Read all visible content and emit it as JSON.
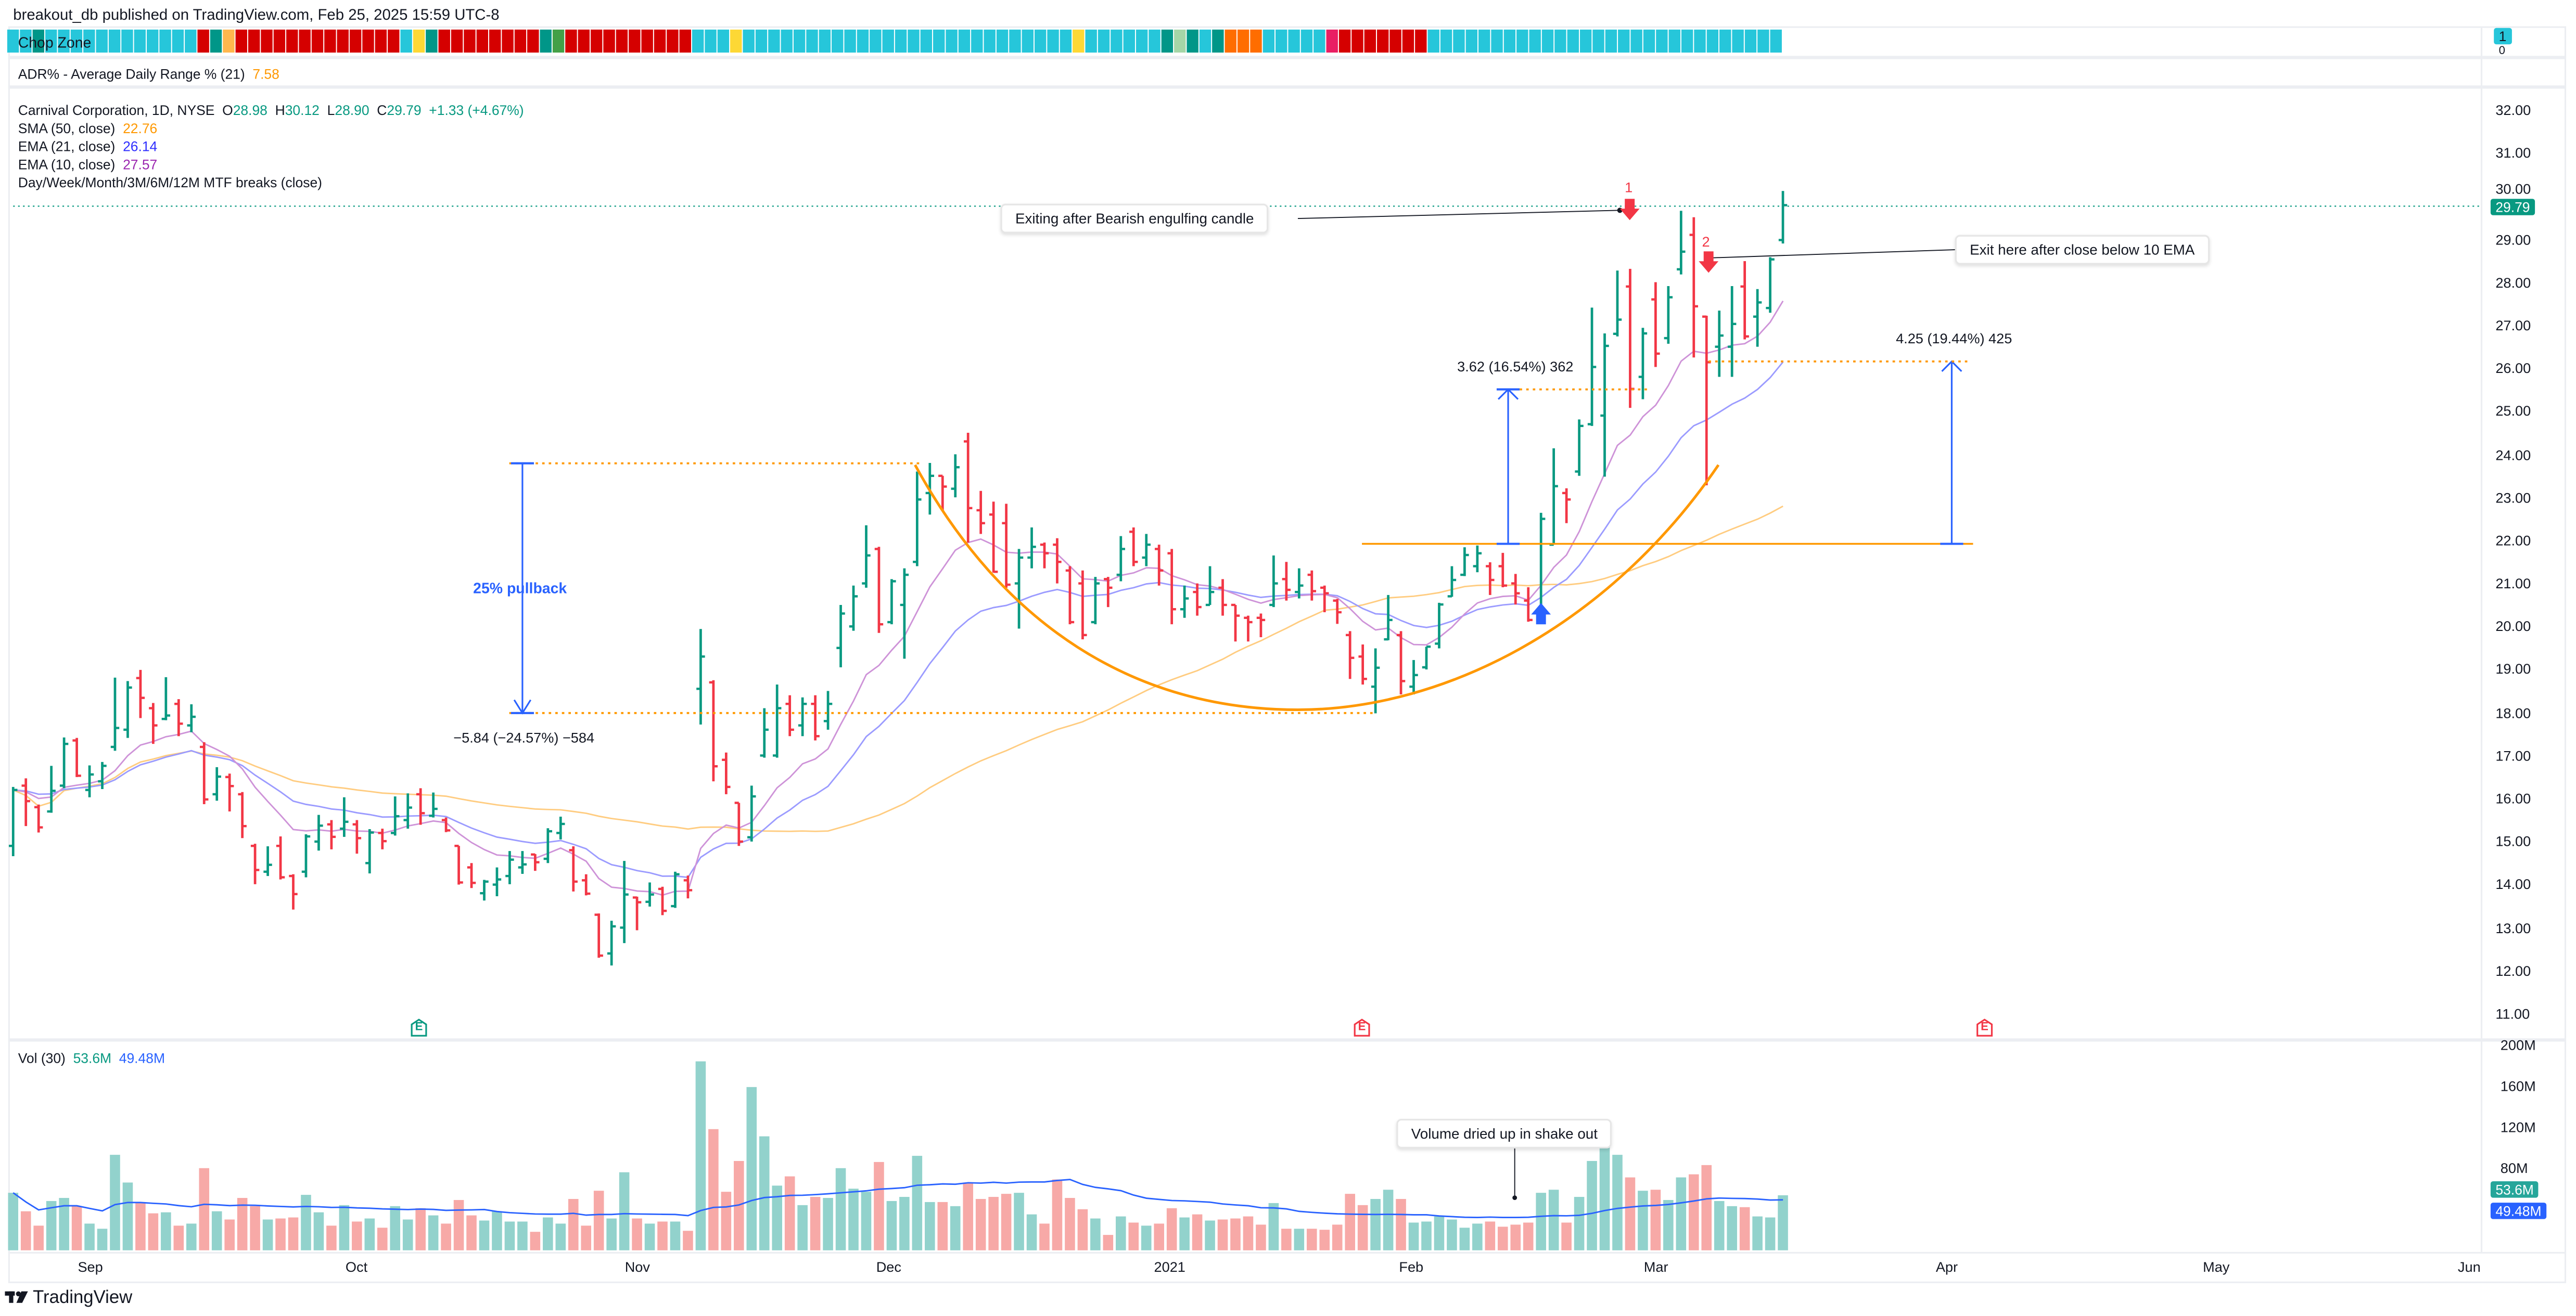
{
  "header": {
    "published": "breakout_db published on TradingView.com, Feb 25, 2025 15:59 UTC-8"
  },
  "chop_zone": {
    "title": "Chop Zone",
    "axis_top": "1",
    "axis_bottom": "0",
    "colors": {
      "C": "#26c6da",
      "T": "#009688",
      "O": "#ffb74d",
      "R": "#d50000",
      "Y": "#fdd835",
      "G": "#43a047",
      "L": "#a5d6a7",
      "N": "#ff6d00",
      "P": "#e91e63"
    },
    "cells": "CCTCCCCCCCCCCCCRTORRRRRRRRRRRRRCYTRRRRRRRRTGRRRRRRRRRRCCCYCCCCCCCCCCCCCCCCCCCCCCCCCCYCCCCCCTLTCTNNNCCCCCPRRRRRRRCCCCCCCCCCCCCCCCCCCCCCCCCCCC"
  },
  "adr": {
    "label": "ADR% - Average Daily Range % (21)",
    "value": "7.58"
  },
  "legend": {
    "symbol": "Carnival Corporation, 1D, NYSE",
    "o_label": "O",
    "o": "28.98",
    "h_label": "H",
    "h": "30.12",
    "l_label": "L",
    "l": "28.90",
    "c_label": "C",
    "c": "29.79",
    "change": "+1.33 (+4.67%)",
    "sma50_label": "SMA (50, close)",
    "sma50": "22.76",
    "ema21_label": "EMA (21, close)",
    "ema21": "26.14",
    "ema10_label": "EMA (10, close)",
    "ema10": "27.57",
    "mtf_label": "Day/Week/Month/3M/6M/12M MTF breaks (close)"
  },
  "colors": {
    "up": "#089981",
    "down": "#f23645",
    "vol_up": "#92d2cc",
    "vol_down": "#f7a9a7",
    "sma50": "#ffcc80",
    "ema21": "#9b9bff",
    "ema10": "#ce93d8",
    "vol_ma": "#2962ff",
    "drawing_orange": "#ff9800",
    "measure_blue": "#2962ff"
  },
  "price_axis": {
    "labels": [
      "32.00",
      "31.00",
      "30.00",
      "29.00",
      "28.00",
      "27.00",
      "26.00",
      "25.00",
      "24.00",
      "23.00",
      "22.00",
      "21.00",
      "20.00",
      "19.00",
      "18.00",
      "17.00",
      "16.00",
      "15.00",
      "14.00",
      "13.00",
      "12.00",
      "11.00"
    ],
    "last_price": "29.79"
  },
  "volume_axis": {
    "labels": [
      {
        "text": "200M",
        "v": 200
      },
      {
        "text": "160M",
        "v": 160
      },
      {
        "text": "120M",
        "v": 120
      },
      {
        "text": "80M",
        "v": 80
      }
    ],
    "vol_badge": "53.6M",
    "ma_badge": "49.48M"
  },
  "volume_legend": {
    "label": "Vol (30)",
    "vol": "53.6M",
    "ma": "49.48M"
  },
  "time_axis": {
    "labels": [
      "Sep",
      "Oct",
      "Nov",
      "Dec",
      "2021",
      "Feb",
      "Mar",
      "Apr",
      "May",
      "Jun"
    ]
  },
  "annotations": {
    "exit1_callout": "Exiting after Bearish engulfing candle",
    "exit2_callout": "Exit here after close below 10 EMA",
    "exit1_num": "1",
    "exit2_num": "2",
    "pullback_label": "25% pullback",
    "pullback_measure": "−5.84 (−24.57%) −584",
    "measure1": "3.62 (16.54%) 362",
    "measure2": "4.25 (19.44%) 425",
    "volume_callout": "Volume dried up in shake out",
    "earnings": [
      "E",
      "E",
      "E"
    ]
  },
  "footer": {
    "brand": "TradingView"
  },
  "chart_data": {
    "type": "ohlc",
    "title": "Carnival Corporation, 1D, NYSE",
    "x_range": [
      "2020-08-24",
      "2021-03-19"
    ],
    "ylim": [
      10.5,
      32.5
    ],
    "volume_ylim": [
      0,
      200
    ],
    "volume_unit": "M",
    "grid": false,
    "bar_fields": [
      "open",
      "high",
      "low",
      "close"
    ],
    "bars": [
      [
        14.9,
        16.27,
        14.66,
        16.2
      ],
      [
        16.3,
        16.47,
        15.36,
        15.94
      ],
      [
        15.8,
        15.86,
        15.21,
        15.33
      ],
      [
        15.7,
        16.76,
        15.67,
        16.18
      ],
      [
        16.3,
        17.42,
        16.24,
        17.27
      ],
      [
        17.35,
        17.41,
        16.5,
        16.53
      ],
      [
        16.2,
        16.77,
        16.03,
        16.56
      ],
      [
        16.4,
        16.85,
        16.22,
        16.76
      ],
      [
        17.2,
        18.81,
        17.11,
        17.64
      ],
      [
        17.6,
        18.73,
        17.41,
        18.58
      ],
      [
        18.8,
        18.99,
        17.87,
        18.34
      ],
      [
        18.1,
        18.22,
        17.27,
        17.7
      ],
      [
        17.85,
        18.82,
        17.82,
        17.93
      ],
      [
        18.2,
        18.31,
        17.45,
        17.74
      ],
      [
        17.7,
        18.19,
        17.54,
        17.9
      ],
      [
        17.2,
        17.31,
        15.87,
        15.98
      ],
      [
        16.1,
        16.73,
        15.95,
        16.51
      ],
      [
        16.5,
        16.58,
        15.7,
        16.29
      ],
      [
        16.1,
        16.15,
        15.08,
        15.36
      ],
      [
        14.9,
        14.95,
        14.01,
        14.34
      ],
      [
        14.3,
        14.89,
        14.2,
        14.46
      ],
      [
        14.9,
        15.12,
        14.12,
        14.17
      ],
      [
        14.2,
        14.24,
        13.42,
        13.78
      ],
      [
        14.3,
        15.17,
        14.17,
        15.12
      ],
      [
        15.0,
        15.62,
        14.79,
        15.37
      ],
      [
        15.4,
        15.5,
        14.82,
        15.11
      ],
      [
        15.3,
        16.03,
        15.11,
        15.46
      ],
      [
        15.4,
        15.5,
        14.72,
        15.08
      ],
      [
        14.5,
        15.29,
        14.26,
        15.21
      ],
      [
        15.2,
        15.3,
        14.82,
        15.01
      ],
      [
        15.2,
        16.05,
        15.14,
        15.59
      ],
      [
        15.5,
        16.12,
        15.3,
        15.79
      ],
      [
        16.1,
        16.24,
        15.39,
        15.66
      ],
      [
        15.6,
        16.14,
        15.56,
        15.76
      ],
      [
        15.5,
        15.56,
        15.22,
        15.26
      ],
      [
        14.9,
        14.9,
        14.0,
        14.05
      ],
      [
        14.4,
        14.5,
        13.92,
        14.04
      ],
      [
        13.8,
        14.11,
        13.63,
        14.07
      ],
      [
        14.0,
        14.4,
        13.73,
        14.12
      ],
      [
        14.2,
        14.78,
        14.01,
        14.58
      ],
      [
        14.4,
        14.78,
        14.25,
        14.47
      ],
      [
        14.7,
        14.71,
        14.32,
        14.52
      ],
      [
        14.6,
        15.31,
        14.5,
        15.24
      ],
      [
        15.2,
        15.58,
        15.05,
        15.41
      ],
      [
        14.8,
        14.89,
        13.84,
        14.07
      ],
      [
        14.1,
        14.24,
        13.75,
        13.79
      ],
      [
        13.3,
        13.33,
        12.3,
        12.35
      ],
      [
        12.4,
        13.16,
        12.12,
        13.03
      ],
      [
        13.0,
        14.55,
        12.64,
        13.77
      ],
      [
        13.7,
        13.72,
        12.94,
        13.59
      ],
      [
        13.6,
        14.05,
        13.49,
        13.77
      ],
      [
        13.9,
        13.95,
        13.29,
        13.39
      ],
      [
        13.5,
        14.3,
        13.46,
        14.24
      ],
      [
        14.1,
        14.21,
        13.68,
        13.87
      ],
      [
        18.55,
        19.94,
        17.72,
        19.3
      ],
      [
        18.7,
        18.75,
        16.4,
        16.75
      ],
      [
        16.9,
        17.07,
        16.1,
        16.27
      ],
      [
        15.9,
        15.9,
        14.9,
        15.0
      ],
      [
        15.1,
        16.3,
        15.0,
        16.05
      ],
      [
        17.0,
        18.1,
        16.95,
        17.6
      ],
      [
        17.0,
        18.65,
        16.95,
        18.1
      ],
      [
        18.2,
        18.4,
        17.45,
        17.6
      ],
      [
        17.7,
        18.35,
        17.45,
        18.2
      ],
      [
        18.2,
        18.4,
        17.35,
        17.45
      ],
      [
        17.8,
        18.5,
        17.6,
        18.2
      ],
      [
        19.5,
        20.5,
        19.05,
        20.3
      ],
      [
        20.0,
        20.95,
        19.9,
        20.7
      ],
      [
        21.0,
        22.35,
        20.9,
        21.65
      ],
      [
        21.8,
        21.85,
        19.85,
        20.05
      ],
      [
        20.1,
        21.1,
        20.05,
        21.05
      ],
      [
        20.5,
        21.35,
        19.25,
        21.2
      ],
      [
        21.5,
        23.6,
        21.4,
        22.95
      ],
      [
        23.1,
        23.8,
        22.6,
        23.5
      ],
      [
        23.5,
        23.5,
        22.7,
        23.25
      ],
      [
        23.2,
        24.0,
        23.0,
        23.7
      ],
      [
        24.3,
        24.5,
        21.95,
        22.75
      ],
      [
        22.7,
        23.15,
        22.15,
        22.4
      ],
      [
        22.6,
        22.9,
        21.25,
        21.27
      ],
      [
        22.4,
        22.85,
        20.9,
        20.97
      ],
      [
        21.0,
        21.8,
        19.95,
        21.6
      ],
      [
        21.6,
        22.3,
        21.35,
        21.85
      ],
      [
        21.9,
        21.95,
        21.35,
        21.7
      ],
      [
        21.9,
        22.05,
        21.0,
        21.5
      ],
      [
        21.3,
        21.4,
        20.05,
        20.1
      ],
      [
        21.0,
        21.3,
        19.7,
        19.8
      ],
      [
        20.1,
        21.15,
        20.05,
        21.0
      ],
      [
        21.1,
        21.15,
        20.45,
        20.9
      ],
      [
        21.2,
        22.1,
        21.05,
        21.8
      ],
      [
        22.2,
        22.3,
        21.4,
        21.5
      ],
      [
        21.6,
        22.15,
        21.4,
        21.9
      ],
      [
        21.8,
        21.9,
        20.95,
        21.3
      ],
      [
        21.7,
        21.8,
        20.05,
        20.4
      ],
      [
        20.4,
        20.95,
        20.2,
        20.65
      ],
      [
        20.8,
        21.0,
        20.25,
        20.45
      ],
      [
        20.5,
        21.4,
        20.5,
        20.8
      ],
      [
        20.9,
        21.1,
        20.25,
        20.5
      ],
      [
        20.5,
        20.5,
        19.65,
        20.25
      ],
      [
        20.2,
        20.25,
        19.65,
        20.1
      ],
      [
        20.2,
        20.3,
        19.75,
        20.15
      ],
      [
        20.5,
        21.65,
        20.45,
        21.0
      ],
      [
        21.1,
        21.5,
        20.6,
        20.85
      ],
      [
        20.8,
        21.35,
        20.65,
        20.95
      ],
      [
        21.2,
        21.3,
        20.6,
        20.82
      ],
      [
        20.9,
        20.95,
        20.33,
        20.77
      ],
      [
        20.6,
        20.64,
        20.06,
        20.33
      ],
      [
        19.8,
        19.89,
        18.78,
        19.27
      ],
      [
        19.3,
        19.58,
        18.65,
        18.78
      ],
      [
        18.6,
        19.49,
        17.98,
        19.04
      ],
      [
        19.7,
        20.73,
        19.68,
        20.15
      ],
      [
        19.8,
        19.89,
        18.42,
        18.73
      ],
      [
        18.6,
        19.22,
        18.42,
        18.87
      ],
      [
        19.05,
        19.53,
        19.0,
        19.53
      ],
      [
        19.6,
        20.55,
        19.49,
        20.51
      ],
      [
        20.7,
        21.4,
        20.69,
        21.08
      ],
      [
        21.2,
        21.84,
        21.17,
        21.66
      ],
      [
        21.4,
        21.88,
        21.26,
        21.7
      ],
      [
        21.4,
        21.49,
        20.73,
        21.08
      ],
      [
        21.4,
        21.71,
        20.91,
        20.95
      ],
      [
        21.0,
        21.22,
        20.51,
        20.77
      ],
      [
        20.6,
        20.91,
        20.11,
        20.15
      ],
      [
        20.3,
        22.64,
        20.2,
        22.5
      ],
      [
        21.9,
        24.14,
        21.9,
        23.26
      ],
      [
        23.1,
        23.21,
        22.4,
        22.95
      ],
      [
        23.6,
        24.81,
        23.5,
        24.66
      ],
      [
        24.7,
        27.41,
        24.66,
        26.03
      ],
      [
        24.9,
        26.81,
        23.48,
        26.52
      ],
      [
        26.8,
        28.27,
        26.74,
        27.13
      ],
      [
        27.9,
        28.31,
        25.08,
        25.52
      ],
      [
        25.8,
        26.94,
        25.28,
        26.81
      ],
      [
        27.6,
        28.0,
        26.03,
        26.34
      ],
      [
        26.7,
        27.91,
        26.57,
        27.65
      ],
      [
        28.3,
        29.66,
        28.18,
        28.71
      ],
      [
        29.1,
        29.51,
        26.25,
        27.44
      ],
      [
        27.2,
        27.22,
        23.28,
        26.14
      ],
      [
        26.5,
        27.34,
        25.8,
        26.76
      ],
      [
        26.5,
        27.91,
        25.8,
        27.03
      ],
      [
        27.9,
        28.49,
        26.67,
        26.74
      ],
      [
        27.2,
        27.84,
        26.5,
        27.53
      ],
      [
        27.4,
        28.58,
        27.29,
        28.53
      ],
      [
        28.98,
        30.12,
        28.9,
        29.79
      ]
    ],
    "volume": [
      56,
      38,
      24,
      48,
      51,
      43,
      26,
      21,
      93,
      66,
      47,
      36,
      37,
      24,
      26,
      80,
      38,
      30,
      51,
      43,
      30,
      31,
      32,
      54,
      37,
      24,
      44,
      28,
      31,
      22,
      43,
      30,
      41,
      34,
      26,
      49,
      34,
      29,
      38,
      28,
      28,
      18,
      32,
      26,
      50,
      24,
      58,
      31,
      76,
      31,
      26,
      28,
      28,
      19,
      184,
      118,
      57,
      87,
      159,
      111,
      63,
      72,
      44,
      52,
      51,
      80,
      60,
      57,
      86,
      48,
      52,
      92,
      47,
      47,
      43,
      66,
      50,
      52,
      55,
      56,
      35,
      26,
      69,
      51,
      40,
      31,
      15,
      33,
      27,
      24,
      26,
      41,
      32,
      35,
      29,
      30,
      31,
      33,
      25,
      46,
      21,
      21,
      21,
      20,
      25,
      55,
      44,
      50,
      59,
      50,
      27,
      28,
      33,
      30,
      22,
      26,
      28,
      23,
      25,
      27,
      56,
      59,
      27,
      52,
      87,
      113,
      93,
      71,
      58,
      59,
      49,
      71,
      74,
      83,
      48,
      43,
      42,
      33,
      32,
      53.6
    ],
    "series": [
      {
        "name": "SMA (50, close)",
        "last": 22.76
      },
      {
        "name": "EMA (21, close)",
        "last": 26.14
      },
      {
        "name": "EMA (10, close)",
        "last": 27.57
      },
      {
        "name": "Vol (30)",
        "last": 49.48
      }
    ],
    "levels": {
      "pullback_high": 23.75,
      "pullback_low": 17.91,
      "breakout": 21.9,
      "measure1_top": 25.52,
      "measure2_top": 26.15
    }
  }
}
